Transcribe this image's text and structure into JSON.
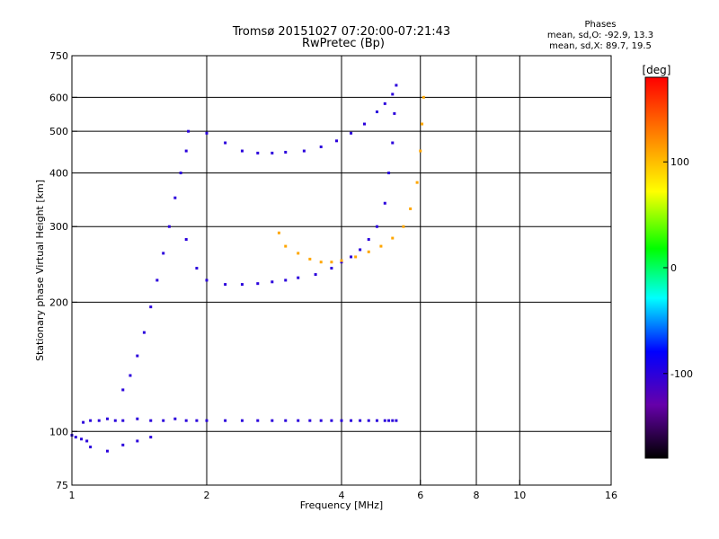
{
  "header": {
    "line1": "Tromsø 20151027 07:20:00-07:21:43",
    "line2": "RwPretec (Bp)"
  },
  "stats": {
    "heading": "Phases",
    "o_line": "mean, sd,O: -92.9, 13.3",
    "x_line": "mean, sd,X:  89.7, 19.5"
  },
  "chart_data": {
    "type": "scatter",
    "xlabel": "Frequency [MHz]",
    "ylabel": "Stationary phase Virtual Height [km]",
    "x_scale": "log",
    "y_scale": "log",
    "xlim": [
      1,
      16
    ],
    "ylim": [
      75,
      750
    ],
    "x_ticks": [
      1,
      2,
      4,
      6,
      8,
      10,
      16
    ],
    "y_ticks": [
      75,
      100,
      200,
      300,
      400,
      500,
      600,
      750
    ],
    "x_grid": [
      2,
      4,
      6,
      8,
      10
    ],
    "y_grid": [
      100,
      200,
      300,
      400,
      500,
      600
    ],
    "grid": true,
    "colorbar": {
      "label": "[deg]",
      "range": [
        -180,
        180
      ],
      "ticks": [
        100,
        0,
        -100
      ],
      "colormap": "rainbow"
    },
    "series": [
      {
        "phase": -100,
        "x": [
          1.06,
          1.1,
          1.15,
          1.2,
          1.25,
          1.3,
          1.4,
          1.5,
          1.6,
          1.7,
          1.8,
          1.9,
          2.0,
          2.2,
          2.4,
          2.6,
          2.8,
          3.0,
          3.2,
          3.4,
          3.6,
          3.8,
          4.0,
          4.2,
          4.4,
          4.6,
          4.8,
          5.0,
          5.1,
          5.2,
          5.3
        ],
        "y": [
          105,
          106,
          106,
          107,
          106,
          106,
          107,
          106,
          106,
          107,
          106,
          106,
          106,
          106,
          106,
          106,
          106,
          106,
          106,
          106,
          106,
          106,
          106,
          106,
          106,
          106,
          106,
          106,
          106,
          106,
          106
        ]
      },
      {
        "phase": -100,
        "x": [
          1.3,
          1.35,
          1.4,
          1.45,
          1.5,
          1.55,
          1.6,
          1.65,
          1.7,
          1.75,
          1.8,
          1.82
        ],
        "y": [
          125,
          135,
          150,
          170,
          195,
          225,
          260,
          300,
          350,
          400,
          450,
          500
        ]
      },
      {
        "phase": -100,
        "x": [
          1.8,
          1.9,
          2.0,
          2.2,
          2.4,
          2.6,
          2.8,
          3.0,
          3.2,
          3.5,
          3.8,
          4.0,
          4.2,
          4.4,
          4.6,
          4.8,
          5.0,
          5.1,
          5.2,
          5.25
        ],
        "y": [
          280,
          240,
          225,
          220,
          220,
          221,
          223,
          225,
          228,
          232,
          240,
          248,
          255,
          265,
          280,
          300,
          340,
          400,
          470,
          550
        ]
      },
      {
        "phase": -100,
        "x": [
          2.0,
          2.2,
          2.4,
          2.6,
          2.8,
          3.0,
          3.3,
          3.6,
          3.9,
          4.2,
          4.5,
          4.8,
          5.0,
          5.2,
          5.3
        ],
        "y": [
          495,
          470,
          450,
          445,
          445,
          447,
          450,
          460,
          475,
          495,
          520,
          555,
          580,
          610,
          640
        ]
      },
      {
        "phase": 110,
        "x": [
          2.9,
          3.0,
          3.2,
          3.4,
          3.6,
          3.8,
          4.0,
          4.3,
          4.6,
          4.9,
          5.2,
          5.5,
          5.7,
          5.9,
          6.0,
          6.05,
          6.1
        ],
        "y": [
          290,
          270,
          260,
          252,
          248,
          248,
          250,
          255,
          262,
          270,
          282,
          300,
          330,
          380,
          450,
          520,
          600
        ]
      },
      {
        "phase": -100,
        "x": [
          1.0,
          1.02,
          1.05,
          1.08,
          1.1,
          1.2,
          1.3,
          1.4,
          1.5
        ],
        "y": [
          98,
          97,
          96,
          95,
          92,
          90,
          93,
          95,
          97
        ]
      }
    ]
  }
}
